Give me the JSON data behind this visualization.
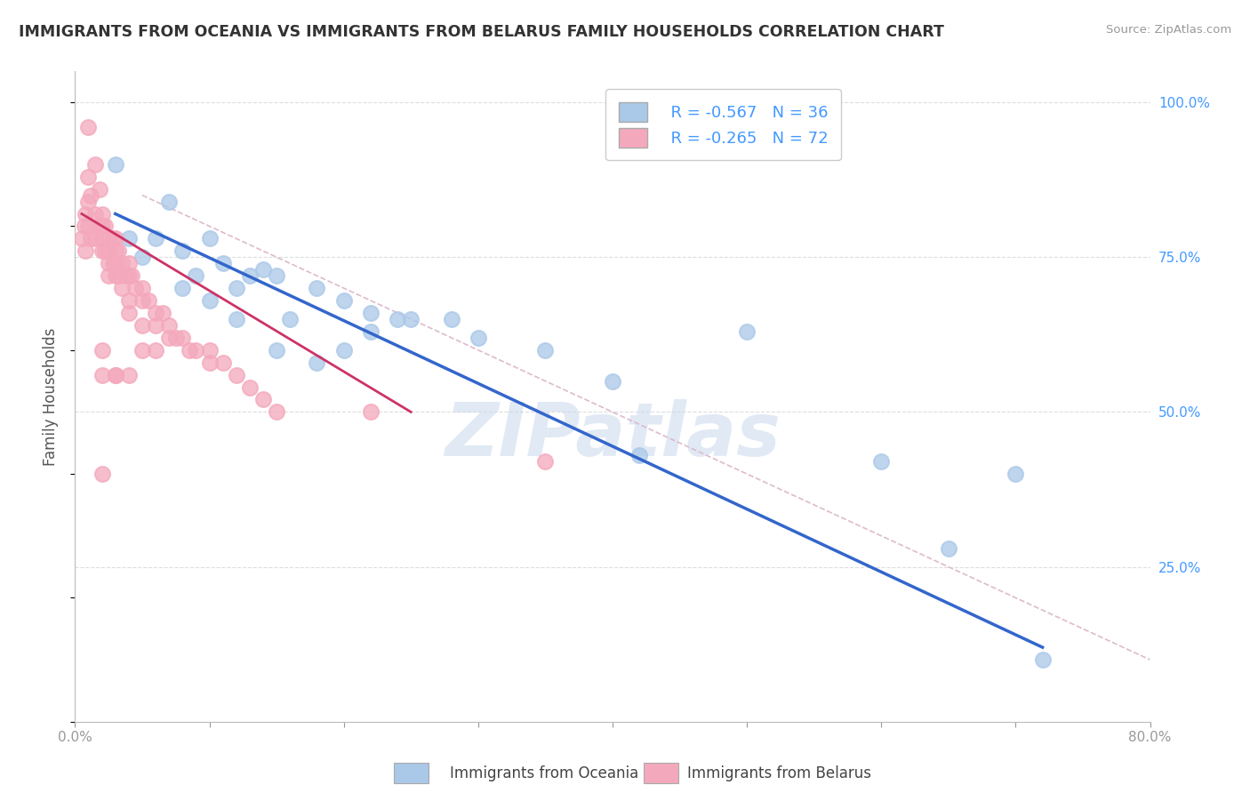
{
  "title": "IMMIGRANTS FROM OCEANIA VS IMMIGRANTS FROM BELARUS FAMILY HOUSEHOLDS CORRELATION CHART",
  "source": "Source: ZipAtlas.com",
  "ylabel": "Family Households",
  "legend_labels": [
    "Immigrants from Oceania",
    "Immigrants from Belarus"
  ],
  "legend_r": [
    -0.567,
    -0.265
  ],
  "legend_n": [
    36,
    72
  ],
  "blue_color": "#aac8e8",
  "pink_color": "#f4a8bc",
  "blue_fill_color": "#aac8e8",
  "pink_fill_color": "#f4a8bc",
  "blue_line_color": "#3366cc",
  "pink_line_color": "#cc3366",
  "diagonal_line_color": "#ddbbcc",
  "title_color": "#333333",
  "right_axis_color": "#4499ff",
  "xlim": [
    0.0,
    0.8
  ],
  "ylim": [
    0.0,
    1.05
  ],
  "xticks": [
    0.0,
    0.1,
    0.2,
    0.3,
    0.4,
    0.5,
    0.6,
    0.7,
    0.8
  ],
  "xticklabels": [
    "0.0%",
    "",
    "",
    "",
    "",
    "",
    "",
    "",
    "80.0%"
  ],
  "yticks_right": [
    0.0,
    0.25,
    0.5,
    0.75,
    1.0
  ],
  "yticklabels_right": [
    "",
    "25.0%",
    "50.0%",
    "75.0%",
    "100.0%"
  ],
  "blue_scatter_x": [
    0.03,
    0.07,
    0.04,
    0.05,
    0.06,
    0.08,
    0.1,
    0.09,
    0.11,
    0.13,
    0.12,
    0.14,
    0.1,
    0.08,
    0.12,
    0.15,
    0.18,
    0.16,
    0.2,
    0.22,
    0.24,
    0.2,
    0.22,
    0.18,
    0.15,
    0.25,
    0.28,
    0.3,
    0.35,
    0.4,
    0.42,
    0.5,
    0.6,
    0.7,
    0.72,
    0.65
  ],
  "blue_scatter_y": [
    0.9,
    0.84,
    0.78,
    0.75,
    0.78,
    0.76,
    0.78,
    0.72,
    0.74,
    0.72,
    0.7,
    0.73,
    0.68,
    0.7,
    0.65,
    0.72,
    0.7,
    0.65,
    0.68,
    0.66,
    0.65,
    0.6,
    0.63,
    0.58,
    0.6,
    0.65,
    0.65,
    0.62,
    0.6,
    0.55,
    0.43,
    0.63,
    0.42,
    0.4,
    0.1,
    0.28
  ],
  "pink_scatter_x": [
    0.005,
    0.007,
    0.008,
    0.01,
    0.01,
    0.01,
    0.012,
    0.012,
    0.015,
    0.015,
    0.015,
    0.018,
    0.018,
    0.02,
    0.02,
    0.02,
    0.02,
    0.022,
    0.022,
    0.025,
    0.025,
    0.025,
    0.025,
    0.028,
    0.028,
    0.03,
    0.03,
    0.03,
    0.03,
    0.032,
    0.032,
    0.035,
    0.035,
    0.038,
    0.04,
    0.04,
    0.04,
    0.04,
    0.042,
    0.045,
    0.05,
    0.05,
    0.05,
    0.055,
    0.06,
    0.06,
    0.065,
    0.07,
    0.07,
    0.075,
    0.08,
    0.085,
    0.09,
    0.1,
    0.1,
    0.11,
    0.12,
    0.13,
    0.14,
    0.15,
    0.05,
    0.04,
    0.03,
    0.02,
    0.01,
    0.02,
    0.03,
    0.22,
    0.06,
    0.02,
    0.35,
    0.008
  ],
  "pink_scatter_y": [
    0.78,
    0.8,
    0.82,
    0.88,
    0.84,
    0.8,
    0.85,
    0.78,
    0.9,
    0.82,
    0.78,
    0.86,
    0.8,
    0.82,
    0.8,
    0.78,
    0.76,
    0.8,
    0.76,
    0.78,
    0.76,
    0.74,
    0.72,
    0.78,
    0.74,
    0.78,
    0.76,
    0.74,
    0.72,
    0.76,
    0.72,
    0.74,
    0.7,
    0.72,
    0.74,
    0.72,
    0.68,
    0.66,
    0.72,
    0.7,
    0.7,
    0.68,
    0.64,
    0.68,
    0.66,
    0.64,
    0.66,
    0.64,
    0.62,
    0.62,
    0.62,
    0.6,
    0.6,
    0.6,
    0.58,
    0.58,
    0.56,
    0.54,
    0.52,
    0.5,
    0.6,
    0.56,
    0.56,
    0.6,
    0.96,
    0.56,
    0.56,
    0.5,
    0.6,
    0.4,
    0.42,
    0.76
  ],
  "watermark_text": "ZIPatlas",
  "background_color": "#ffffff",
  "grid_color": "#dddddd",
  "blue_line_x": [
    0.03,
    0.72
  ],
  "blue_line_y": [
    0.82,
    0.12
  ],
  "pink_line_x": [
    0.005,
    0.25
  ],
  "pink_line_y": [
    0.82,
    0.5
  ],
  "diag_line_x": [
    0.05,
    0.8
  ],
  "diag_line_y": [
    0.85,
    0.1
  ]
}
